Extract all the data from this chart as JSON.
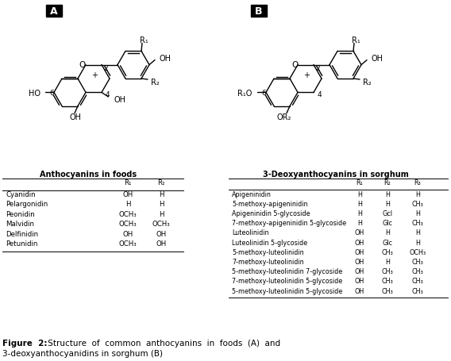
{
  "table_A_title": "Anthocyanins in foods",
  "table_B_title": "3-Deoxyanthocyanins in sorghum",
  "table_A_rows": [
    [
      "Cyanidin",
      "OH",
      "H"
    ],
    [
      "Pelargonidin",
      "H",
      "H"
    ],
    [
      "Peonidin",
      "OCH₃",
      "H"
    ],
    [
      "Malvidin",
      "OCH₃",
      "OCH₃"
    ],
    [
      "Delfinidin",
      "OH",
      "OH"
    ],
    [
      "Petunidin",
      "OCH₃",
      "OH"
    ]
  ],
  "table_B_rows": [
    [
      "Apigeninidin",
      "H",
      "H",
      "H"
    ],
    [
      "5-methoxy-apigeninidin",
      "H",
      "H",
      "CH₃"
    ],
    [
      "Apigeninidin 5-glycoside",
      "H",
      "Gcl",
      "H"
    ],
    [
      "7-methoxy-apigeninidin 5-glycoside",
      "H",
      "Glc",
      "CH₃"
    ],
    [
      "Luteolinidin",
      "OH",
      "H",
      "H"
    ],
    [
      "Luteolinidin 5-glycoside",
      "OH",
      "Glc",
      "H"
    ],
    [
      "5-methoxy-luteolinidin",
      "OH",
      "CH₃",
      "OCH₃"
    ],
    [
      "7-methoxy-luteolinidin",
      "OH",
      "H",
      "CH₃"
    ],
    [
      "5-methoxy-luteolinidin 7-glycoside",
      "OH",
      "CH₃",
      "CH₃"
    ],
    [
      "7-methoxy-luteolinidin 5-glycoside",
      "OH",
      "CH₃",
      "CH₃"
    ],
    [
      "5-methoxy-luteolinidin 5-glycoside",
      "OH",
      "CH₃",
      "CH₃"
    ]
  ],
  "bg_color": "#ffffff",
  "caption": "Figure  2:  Structure  of  common  anthocyanins  in  foods  (A)  and  3-\ndeoxyanthocyanidins in sorghum (B)"
}
